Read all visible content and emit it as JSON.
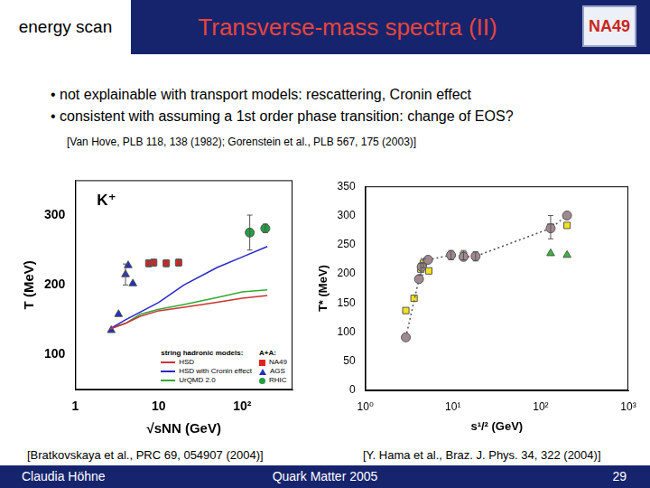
{
  "header": {
    "section": "energy scan",
    "title": "Transverse-mass spectra (II)",
    "logo": "NA49"
  },
  "bullets": [
    "• not explainable with transport models: rescattering, Cronin effect",
    "• consistent with assuming a 1st order phase transition: change of EOS?"
  ],
  "reference": "[Van Hove, PLB 118, 138 (1982); Gorenstein et al., PLB 567, 175 (2003)]",
  "footer": {
    "author": "Claudia Höhne",
    "event": "Quark Matter 2005",
    "page": "29"
  },
  "chart_data": [
    {
      "type": "scatter",
      "source": "[Bratkovskaya et al., PRC 69, 054907 (2004)]",
      "annotations": [
        "K⁺"
      ],
      "x_label": "√sNN (GeV)",
      "y_label": "T (MeV)",
      "log": "x",
      "grid": false,
      "xlim": [
        1,
        400
      ],
      "xticks": [
        1,
        10,
        {
          "value": 100,
          "label": "10²"
        }
      ],
      "ylim": [
        50,
        350
      ],
      "yticks": [
        100,
        200,
        300
      ],
      "legend": "lower right",
      "legend_title": [
        "string hadronic models:",
        "A+A:"
      ],
      "series": [
        {
          "name": "HSD",
          "type": "line",
          "marker": "none",
          "line_style": "solid",
          "color": "#cc3333",
          "x": [
            2.6,
            4,
            6,
            10,
            20,
            50,
            100,
            200
          ],
          "values": [
            137,
            145,
            155,
            163,
            168,
            175,
            181,
            185
          ]
        },
        {
          "name": "HSD with Cronin effect",
          "type": "line",
          "marker": "none",
          "line_style": "solid",
          "color": "#2828cc",
          "x": [
            2.6,
            4,
            10,
            20,
            50,
            100,
            200
          ],
          "values": [
            137,
            150,
            175,
            200,
            225,
            240,
            255
          ]
        },
        {
          "name": "UrQMD 2.0",
          "type": "line",
          "marker": "none",
          "line_style": "solid",
          "color": "#33aa33",
          "x": [
            2.6,
            4,
            6,
            10,
            20,
            50,
            100,
            200
          ],
          "values": [
            137,
            145,
            158,
            165,
            172,
            182,
            190,
            193
          ]
        },
        {
          "name": "NA49",
          "type": "scatter",
          "marker": "square",
          "color": "#e02020",
          "x": [
            7.6,
            8.7,
            12.3,
            17.3
          ],
          "values": [
            231,
            232,
            231,
            232
          ],
          "errors": [
            5,
            5,
            5,
            5
          ]
        },
        {
          "name": "AGS",
          "type": "scatter",
          "marker": "triangle",
          "color": "#2030c0",
          "x": [
            2.7,
            3.3,
            4.0,
            4.3,
            4.9
          ],
          "values": [
            135,
            158,
            215,
            228,
            202
          ],
          "errors": [
            null,
            null,
            15,
            null,
            null
          ]
        },
        {
          "name": "RHIC",
          "type": "scatter",
          "marker": "circle",
          "color": "#20a040",
          "x": [
            123,
            189
          ],
          "values": [
            275,
            281
          ],
          "errors": [
            25,
            6
          ]
        }
      ]
    },
    {
      "type": "scatter",
      "source": "[Y. Hama et al., Braz. J. Phys. 34, 322 (2004)]",
      "x_label": "s¹/² (GeV)",
      "y_label": "T* (MeV)",
      "log": "x",
      "grid": false,
      "xlim": [
        1,
        1000
      ],
      "xticks": [
        {
          "value": 1,
          "label": "10⁰"
        },
        {
          "value": 10,
          "label": "10¹"
        },
        {
          "value": 100,
          "label": "10²"
        },
        {
          "value": 1000,
          "label": "10³"
        }
      ],
      "ylim": [
        0,
        350
      ],
      "yticks": [
        0,
        50,
        100,
        150,
        200,
        250,
        300,
        350
      ],
      "series": [
        {
          "type": "line",
          "marker": "circle",
          "line_style": "dotted",
          "color": "#a08890",
          "x": [
            2.9,
            4.1,
            4.4,
            5.2,
            9.5,
            13.2,
            18.1,
            130,
            200
          ],
          "values": [
            91,
            191,
            212,
            224,
            232,
            229,
            230,
            278,
            300
          ]
        },
        {
          "type": "scatter",
          "marker": "square",
          "color": "#f2e21e",
          "x": [
            2.9,
            3.6,
            4.3,
            4.6,
            5.3,
            9.5,
            13.2,
            18.1,
            130,
            200
          ],
          "values": [
            137,
            158,
            208,
            218,
            205,
            232,
            232,
            230,
            280,
            283
          ],
          "errors": [
            null,
            null,
            10,
            8,
            null,
            8,
            8,
            8,
            20,
            null
          ]
        },
        {
          "type": "scatter",
          "marker": "triangle",
          "color": "#33bb33",
          "x": [
            130,
            200
          ],
          "values": [
            235,
            232
          ]
        }
      ]
    }
  ]
}
